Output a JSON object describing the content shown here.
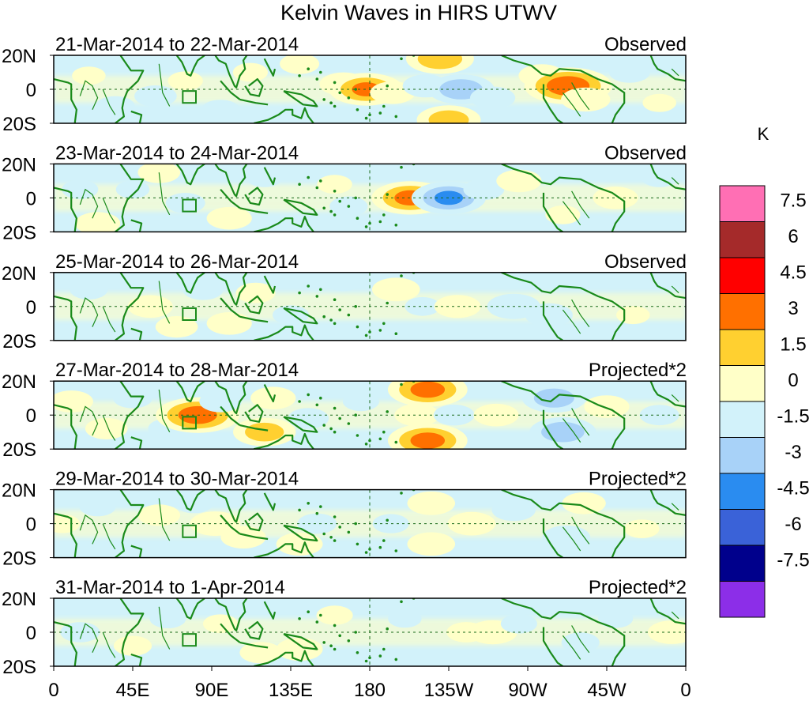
{
  "chart_data": {
    "type": "heatmap",
    "title": "Kelvin Waves in HIRS UTWV",
    "x_tick_labels": [
      "0",
      "45E",
      "90E",
      "135E",
      "180",
      "135W",
      "90W",
      "45W",
      "0"
    ],
    "y_tick_labels": [
      "20N",
      "0",
      "20S"
    ],
    "x_range_lon": [
      0,
      360
    ],
    "y_range_lat": [
      -20,
      20
    ],
    "colorbar": {
      "unit": "K",
      "levels": [
        "7.5",
        "6",
        "4.5",
        "3",
        "1.5",
        "0",
        "-1.5",
        "-3",
        "-4.5",
        "-6",
        "-7.5"
      ],
      "colors": [
        "#ff6fb4",
        "#a52a2a",
        "#ff0000",
        "#ff7000",
        "#ffd030",
        "#ffffc8",
        "#d2f2fa",
        "#a8d2f8",
        "#2a8cf0",
        "#3a62d8",
        "#00008c",
        "#8c2ee8"
      ]
    },
    "panels": [
      {
        "date_range": "21-Mar-2014 to 22-Mar-2014",
        "label": "Observed",
        "anomalies": [
          {
            "lon": 20,
            "lat": 8,
            "value": 0.8
          },
          {
            "lon": 35,
            "lat": -10,
            "value": -1.2
          },
          {
            "lon": 58,
            "lat": -4,
            "value": -1.4
          },
          {
            "lon": 75,
            "lat": 5,
            "value": 0.9
          },
          {
            "lon": 95,
            "lat": -12,
            "value": -1.1
          },
          {
            "lon": 112,
            "lat": 10,
            "value": 0.9
          },
          {
            "lon": 140,
            "lat": 15,
            "value": 1.2
          },
          {
            "lon": 165,
            "lat": 3,
            "value": 1.8
          },
          {
            "lon": 178,
            "lat": 0,
            "value": 3.8
          },
          {
            "lon": 193,
            "lat": -2,
            "value": 1.6
          },
          {
            "lon": 212,
            "lat": 2,
            "value": -1.7
          },
          {
            "lon": 232,
            "lat": 0,
            "value": -3.2
          },
          {
            "lon": 250,
            "lat": -5,
            "value": -1.6
          },
          {
            "lon": 220,
            "lat": 18,
            "value": 3.3
          },
          {
            "lon": 225,
            "lat": -18,
            "value": 3.0
          },
          {
            "lon": 278,
            "lat": 8,
            "value": 1.7
          },
          {
            "lon": 293,
            "lat": 2,
            "value": 4.8
          },
          {
            "lon": 303,
            "lat": -6,
            "value": 1.9
          },
          {
            "lon": 328,
            "lat": 10,
            "value": -1.3
          },
          {
            "lon": 345,
            "lat": -8,
            "value": 0.8
          }
        ]
      },
      {
        "date_range": "23-Mar-2014 to 24-Mar-2014",
        "label": "Observed",
        "anomalies": [
          {
            "lon": 15,
            "lat": 5,
            "value": -1.0
          },
          {
            "lon": 25,
            "lat": -15,
            "value": 1.6
          },
          {
            "lon": 45,
            "lat": 5,
            "value": -0.8
          },
          {
            "lon": 60,
            "lat": 15,
            "value": 1.4
          },
          {
            "lon": 75,
            "lat": -3,
            "value": -1.2
          },
          {
            "lon": 100,
            "lat": -12,
            "value": 1.6
          },
          {
            "lon": 120,
            "lat": 12,
            "value": -1.0
          },
          {
            "lon": 160,
            "lat": 8,
            "value": 0.9
          },
          {
            "lon": 168,
            "lat": -5,
            "value": -1.1
          },
          {
            "lon": 203,
            "lat": 0,
            "value": 4.0
          },
          {
            "lon": 225,
            "lat": 0,
            "value": -3.8
          },
          {
            "lon": 245,
            "lat": 5,
            "value": -1.3
          },
          {
            "lon": 265,
            "lat": 10,
            "value": 1.6
          },
          {
            "lon": 290,
            "lat": -10,
            "value": 0.9
          },
          {
            "lon": 320,
            "lat": 0,
            "value": 1.6
          },
          {
            "lon": 345,
            "lat": 12,
            "value": -1.0
          }
        ]
      },
      {
        "date_range": "25-Mar-2014 to 26-Mar-2014",
        "label": "Observed",
        "anomalies": [
          {
            "lon": 20,
            "lat": 10,
            "value": -1.1
          },
          {
            "lon": 55,
            "lat": 0,
            "value": 1.6
          },
          {
            "lon": 70,
            "lat": -12,
            "value": 1.4
          },
          {
            "lon": 85,
            "lat": 10,
            "value": -1.3
          },
          {
            "lon": 100,
            "lat": -10,
            "value": 1.6
          },
          {
            "lon": 115,
            "lat": 8,
            "value": 1.2
          },
          {
            "lon": 135,
            "lat": -5,
            "value": -1.0
          },
          {
            "lon": 165,
            "lat": 15,
            "value": -1.1
          },
          {
            "lon": 195,
            "lat": 10,
            "value": 1.8
          },
          {
            "lon": 210,
            "lat": 0,
            "value": -0.9
          },
          {
            "lon": 230,
            "lat": 0,
            "value": 1.7
          },
          {
            "lon": 262,
            "lat": 0,
            "value": -2.2
          },
          {
            "lon": 282,
            "lat": -5,
            "value": -1.8
          },
          {
            "lon": 330,
            "lat": -5,
            "value": 0.8
          }
        ]
      },
      {
        "date_range": "27-Mar-2014 to 28-Mar-2014",
        "label": "Projected*2",
        "anomalies": [
          {
            "lon": 10,
            "lat": 8,
            "value": 1.5
          },
          {
            "lon": 30,
            "lat": -8,
            "value": 1.4
          },
          {
            "lon": 45,
            "lat": 10,
            "value": -1.2
          },
          {
            "lon": 65,
            "lat": -8,
            "value": -1.2
          },
          {
            "lon": 82,
            "lat": 0,
            "value": 4.5
          },
          {
            "lon": 95,
            "lat": 8,
            "value": -1.4
          },
          {
            "lon": 120,
            "lat": -10,
            "value": 2.9
          },
          {
            "lon": 125,
            "lat": 10,
            "value": 1.6
          },
          {
            "lon": 145,
            "lat": -2,
            "value": -1.3
          },
          {
            "lon": 175,
            "lat": 8,
            "value": -1.0
          },
          {
            "lon": 207,
            "lat": 0,
            "value": 1.6
          },
          {
            "lon": 213,
            "lat": 15,
            "value": 4.2
          },
          {
            "lon": 213,
            "lat": -15,
            "value": 4.2
          },
          {
            "lon": 228,
            "lat": 0,
            "value": -1.3
          },
          {
            "lon": 252,
            "lat": 0,
            "value": 1.6
          },
          {
            "lon": 285,
            "lat": 10,
            "value": -3.0
          },
          {
            "lon": 290,
            "lat": -10,
            "value": -3.2
          },
          {
            "lon": 315,
            "lat": 5,
            "value": 1.6
          },
          {
            "lon": 345,
            "lat": 0,
            "value": -1.2
          }
        ]
      },
      {
        "date_range": "29-Mar-2014 to 30-Mar-2014",
        "label": "Projected*2",
        "anomalies": [
          {
            "lon": 5,
            "lat": 0,
            "value": 0.9
          },
          {
            "lon": 25,
            "lat": 10,
            "value": -1.0
          },
          {
            "lon": 60,
            "lat": 5,
            "value": 1.4
          },
          {
            "lon": 80,
            "lat": 12,
            "value": -1.1
          },
          {
            "lon": 92,
            "lat": 0,
            "value": 2.0
          },
          {
            "lon": 108,
            "lat": -8,
            "value": 1.6
          },
          {
            "lon": 140,
            "lat": -12,
            "value": 1.7
          },
          {
            "lon": 150,
            "lat": 0,
            "value": -1.2
          },
          {
            "lon": 192,
            "lat": 0,
            "value": -1.0
          },
          {
            "lon": 215,
            "lat": 12,
            "value": 1.8
          },
          {
            "lon": 215,
            "lat": -12,
            "value": 1.8
          },
          {
            "lon": 238,
            "lat": 0,
            "value": 1.8
          },
          {
            "lon": 262,
            "lat": 8,
            "value": -1.5
          },
          {
            "lon": 292,
            "lat": -8,
            "value": -1.8
          },
          {
            "lon": 302,
            "lat": 12,
            "value": 1.5
          },
          {
            "lon": 335,
            "lat": -3,
            "value": 0.9
          }
        ]
      },
      {
        "date_range": "31-Mar-2014 to 1-Apr-2014",
        "label": "Projected*2",
        "anomalies": [
          {
            "lon": 15,
            "lat": 0,
            "value": -1.2
          },
          {
            "lon": 45,
            "lat": -8,
            "value": 1.1
          },
          {
            "lon": 65,
            "lat": 8,
            "value": -1.0
          },
          {
            "lon": 95,
            "lat": 5,
            "value": 0.9
          },
          {
            "lon": 118,
            "lat": -12,
            "value": 1.4
          },
          {
            "lon": 140,
            "lat": -10,
            "value": 1.7
          },
          {
            "lon": 160,
            "lat": 10,
            "value": 1.0
          },
          {
            "lon": 200,
            "lat": 8,
            "value": -0.8
          },
          {
            "lon": 235,
            "lat": 0,
            "value": 1.2
          },
          {
            "lon": 250,
            "lat": 0,
            "value": 1.9
          },
          {
            "lon": 265,
            "lat": 5,
            "value": -1.0
          },
          {
            "lon": 300,
            "lat": -6,
            "value": -1.1
          },
          {
            "lon": 320,
            "lat": 8,
            "value": -0.9
          },
          {
            "lon": 352,
            "lat": 0,
            "value": 1.8
          }
        ]
      }
    ]
  }
}
